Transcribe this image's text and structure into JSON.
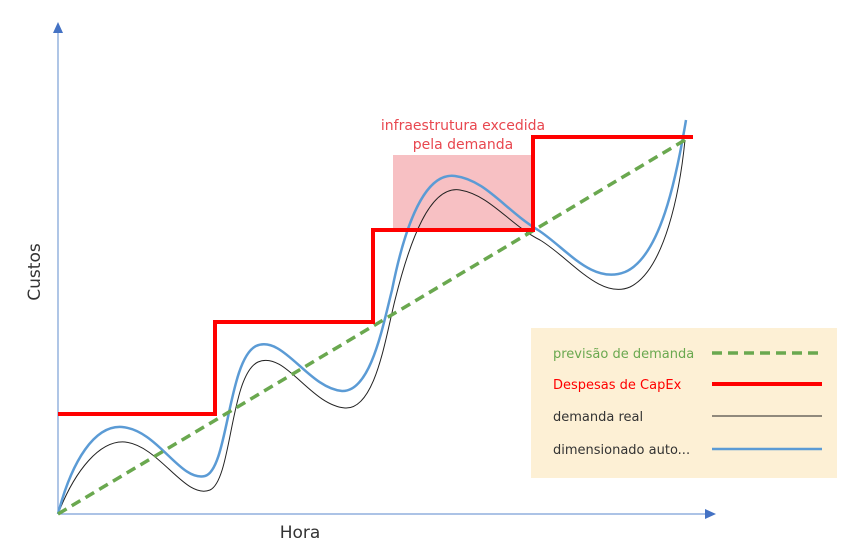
{
  "chart_data": {
    "type": "line",
    "xlabel": "Hora",
    "ylabel": "Custos",
    "annotation": {
      "line1": "infraestrutura excedida",
      "line2": "pela demanda"
    },
    "legend": {
      "placement": "bottom-right",
      "items": [
        {
          "label": "previsão de demanda",
          "color": "#6aa84f",
          "style": "dashed"
        },
        {
          "label": "Despesas de CapEx",
          "color": "#ff0000",
          "style": "solid-thick"
        },
        {
          "label": "demanda real",
          "color": "#333333",
          "style": "solid-thin"
        },
        {
          "label": "dimensionado auto...",
          "color": "#5b9bd5",
          "style": "solid"
        }
      ]
    },
    "colors": {
      "axis": "#4472c4",
      "overage": "#f4a6a9",
      "legend_bg": "#fdf0d5"
    }
  }
}
